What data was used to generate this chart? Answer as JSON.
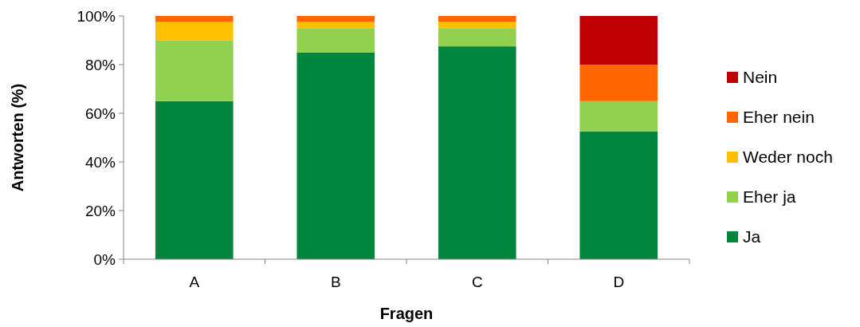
{
  "chart_data": {
    "type": "bar",
    "stacked": true,
    "xlabel": "Fragen",
    "ylabel": "Antworten (%)",
    "categories": [
      "A",
      "B",
      "C",
      "D"
    ],
    "series": [
      {
        "name": "Ja",
        "color": "#00863d",
        "values": [
          65,
          85,
          87.5,
          52.5
        ]
      },
      {
        "name": "Eher ja",
        "color": "#92d050",
        "values": [
          25,
          10,
          7.5,
          12.5
        ]
      },
      {
        "name": "Weder noch",
        "color": "#ffc000",
        "values": [
          7.5,
          2.5,
          2.5,
          0
        ]
      },
      {
        "name": "Eher nein",
        "color": "#ff6600",
        "values": [
          2.5,
          2.5,
          2.5,
          15
        ]
      },
      {
        "name": "Nein",
        "color": "#c00000",
        "values": [
          0,
          0,
          0,
          20
        ]
      }
    ],
    "ylim": [
      0,
      100
    ],
    "yticks": [
      {
        "value": 0,
        "label": "0%"
      },
      {
        "value": 20,
        "label": "20%"
      },
      {
        "value": 40,
        "label": "40%"
      },
      {
        "value": 60,
        "label": "60%"
      },
      {
        "value": 80,
        "label": "80%"
      },
      {
        "value": 100,
        "label": "100%"
      }
    ],
    "grid": false,
    "legend": "right"
  }
}
